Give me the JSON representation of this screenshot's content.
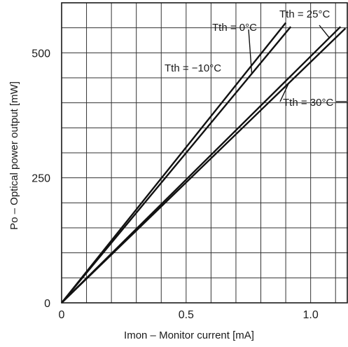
{
  "chart_data": {
    "type": "line",
    "xlabel": "Imon – Monitor current [mA]",
    "ylabel": "Po – Optical power output [mW]",
    "xlim": [
      0,
      1.15
    ],
    "ylim": [
      0,
      600
    ],
    "x_ticks": [
      0,
      0.5,
      1.0
    ],
    "x_tick_labels": [
      "0",
      "0.5",
      "1.0"
    ],
    "y_ticks": [
      0,
      250,
      500
    ],
    "y_tick_labels": [
      "0",
      "250",
      "500"
    ],
    "grid": true,
    "series": [
      {
        "name": "Tth = −10°C",
        "x": [
          0,
          0.9
        ],
        "y": [
          0,
          560
        ]
      },
      {
        "name": "Tth = 0°C",
        "x": [
          0,
          0.92
        ],
        "y": [
          0,
          552
        ]
      },
      {
        "name": "Tth = 25°C",
        "x": [
          0,
          1.12
        ],
        "y": [
          0,
          552
        ]
      },
      {
        "name": "Tth = 30°C",
        "x": [
          0,
          1.14
        ],
        "y": [
          0,
          549
        ]
      }
    ]
  }
}
